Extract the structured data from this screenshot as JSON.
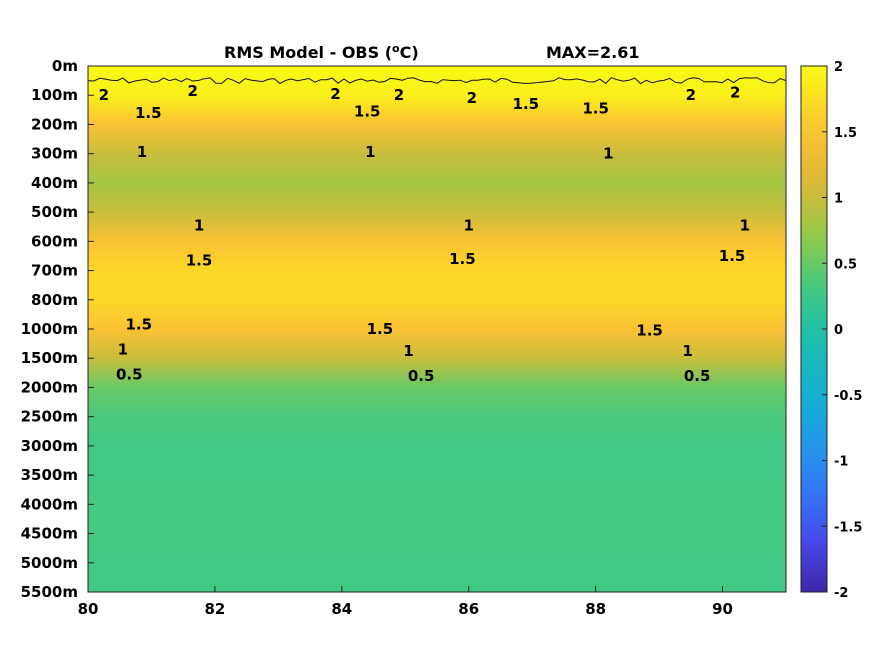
{
  "chart_data": {
    "type": "heatmap",
    "title": "RMS Model - OBS (",
    "title_unit": "o",
    "title_unit_suffix": "C)",
    "max_label": "MAX=2.61",
    "xlim": [
      80,
      91
    ],
    "x_ticks": [
      80,
      82,
      84,
      86,
      88,
      90
    ],
    "y_ticks": [
      "0m",
      "100m",
      "200m",
      "300m",
      "400m",
      "500m",
      "600m",
      "700m",
      "800m",
      "1000m",
      "1500m",
      "2000m",
      "2500m",
      "3000m",
      "3500m",
      "4000m",
      "4500m",
      "5000m",
      "5500m"
    ],
    "depth_rms_profile": [
      2.1,
      1.9,
      1.5,
      1.0,
      0.8,
      1.0,
      1.5,
      1.7,
      1.7,
      1.5,
      1.0,
      0.5,
      0.35,
      0.3,
      0.3,
      0.33,
      0.33,
      0.3,
      0.3
    ],
    "colorbar": {
      "range": [
        -2,
        2
      ],
      "ticks": [
        "2",
        "1.5",
        "1",
        "0.5",
        "0",
        "-0.5",
        "-1",
        "-1.5",
        "-2"
      ],
      "colormap": "parula"
    },
    "contour_levels": [
      0.5,
      1,
      1.5,
      2
    ],
    "contour_labels": [
      {
        "text": "2",
        "x": 80.25,
        "depth_index": 1.0
      },
      {
        "text": "1.5",
        "x": 80.95,
        "depth_index": 1.6
      },
      {
        "text": "1",
        "x": 80.85,
        "depth_index": 2.95
      },
      {
        "text": "1",
        "x": 84.45,
        "depth_index": 2.95
      },
      {
        "text": "1",
        "x": 88.2,
        "depth_index": 3.0
      },
      {
        "text": "2",
        "x": 81.65,
        "depth_index": 0.85
      },
      {
        "text": "2",
        "x": 83.9,
        "depth_index": 0.95
      },
      {
        "text": "1.5",
        "x": 84.4,
        "depth_index": 1.55
      },
      {
        "text": "2",
        "x": 84.9,
        "depth_index": 1.0
      },
      {
        "text": "2",
        "x": 86.05,
        "depth_index": 1.1
      },
      {
        "text": "1.5",
        "x": 86.9,
        "depth_index": 1.3
      },
      {
        "text": "1.5",
        "x": 88.0,
        "depth_index": 1.45
      },
      {
        "text": "2",
        "x": 89.5,
        "depth_index": 1.0
      },
      {
        "text": "2",
        "x": 90.2,
        "depth_index": 0.9
      },
      {
        "text": "1",
        "x": 81.75,
        "depth_index": 5.45
      },
      {
        "text": "1",
        "x": 86.0,
        "depth_index": 5.45
      },
      {
        "text": "1",
        "x": 90.35,
        "depth_index": 5.45
      },
      {
        "text": "1.5",
        "x": 81.75,
        "depth_index": 6.65
      },
      {
        "text": "1.5",
        "x": 85.9,
        "depth_index": 6.6
      },
      {
        "text": "1.5",
        "x": 90.15,
        "depth_index": 6.5
      },
      {
        "text": "1.5",
        "x": 80.8,
        "depth_index": 8.85
      },
      {
        "text": "1.5",
        "x": 84.6,
        "depth_index": 9.0
      },
      {
        "text": "1.5",
        "x": 88.85,
        "depth_index": 9.05
      },
      {
        "text": "1",
        "x": 80.55,
        "depth_index": 9.7
      },
      {
        "text": "1",
        "x": 85.05,
        "depth_index": 9.75
      },
      {
        "text": "1",
        "x": 89.45,
        "depth_index": 9.75
      },
      {
        "text": "0.5",
        "x": 80.65,
        "depth_index": 10.55
      },
      {
        "text": "0.5",
        "x": 85.25,
        "depth_index": 10.6
      },
      {
        "text": "0.5",
        "x": 89.6,
        "depth_index": 10.6
      }
    ],
    "grid": false,
    "legend": "none"
  }
}
